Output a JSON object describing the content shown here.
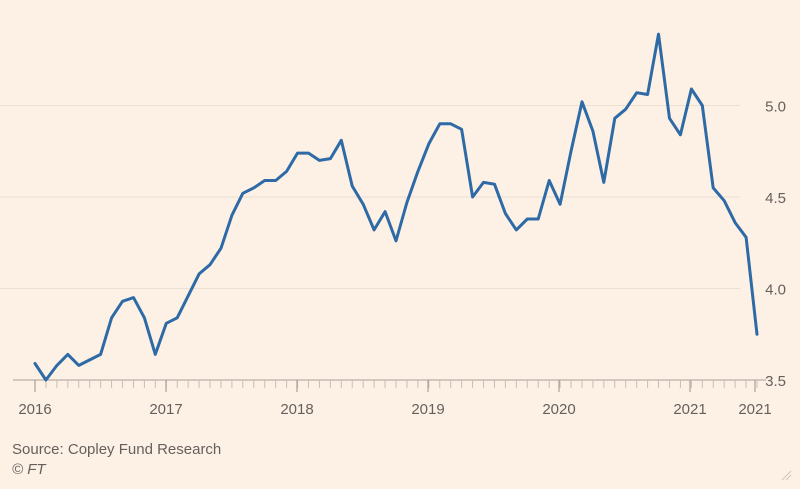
{
  "chart_data": {
    "type": "line",
    "title": "",
    "xlabel": "",
    "ylabel": "",
    "ylim": [
      3.5,
      5.5
    ],
    "y_ticks": [
      "3.5",
      "4.0",
      "4.5",
      "5.0"
    ],
    "x_tick_labels": [
      "2016",
      "2017",
      "2018",
      "2019",
      "2020",
      "2021",
      "2021"
    ],
    "y_axis_position": "right",
    "grid": true,
    "series": [
      {
        "color": "#2d6aa6",
        "values": [
          3.59,
          3.5,
          3.58,
          3.64,
          3.58,
          3.61,
          3.64,
          3.84,
          3.93,
          3.95,
          3.84,
          3.64,
          3.81,
          3.84,
          3.96,
          4.08,
          4.13,
          4.22,
          4.4,
          4.52,
          4.55,
          4.59,
          4.59,
          4.64,
          4.74,
          4.74,
          4.7,
          4.71,
          4.81,
          4.56,
          4.46,
          4.32,
          4.42,
          4.26,
          4.47,
          4.64,
          4.79,
          4.9,
          4.9,
          4.87,
          4.5,
          4.58,
          4.57,
          4.41,
          4.32,
          4.38,
          4.38,
          4.59,
          4.46,
          4.75,
          5.02,
          4.86,
          4.58,
          4.93,
          4.98,
          5.07,
          5.06,
          5.39,
          4.93,
          4.84,
          5.09,
          5.0,
          4.55,
          4.48,
          4.36,
          4.28,
          3.75
        ]
      }
    ]
  },
  "footer": {
    "source": "Source: Copley Fund Research",
    "copyright": "© FT"
  }
}
